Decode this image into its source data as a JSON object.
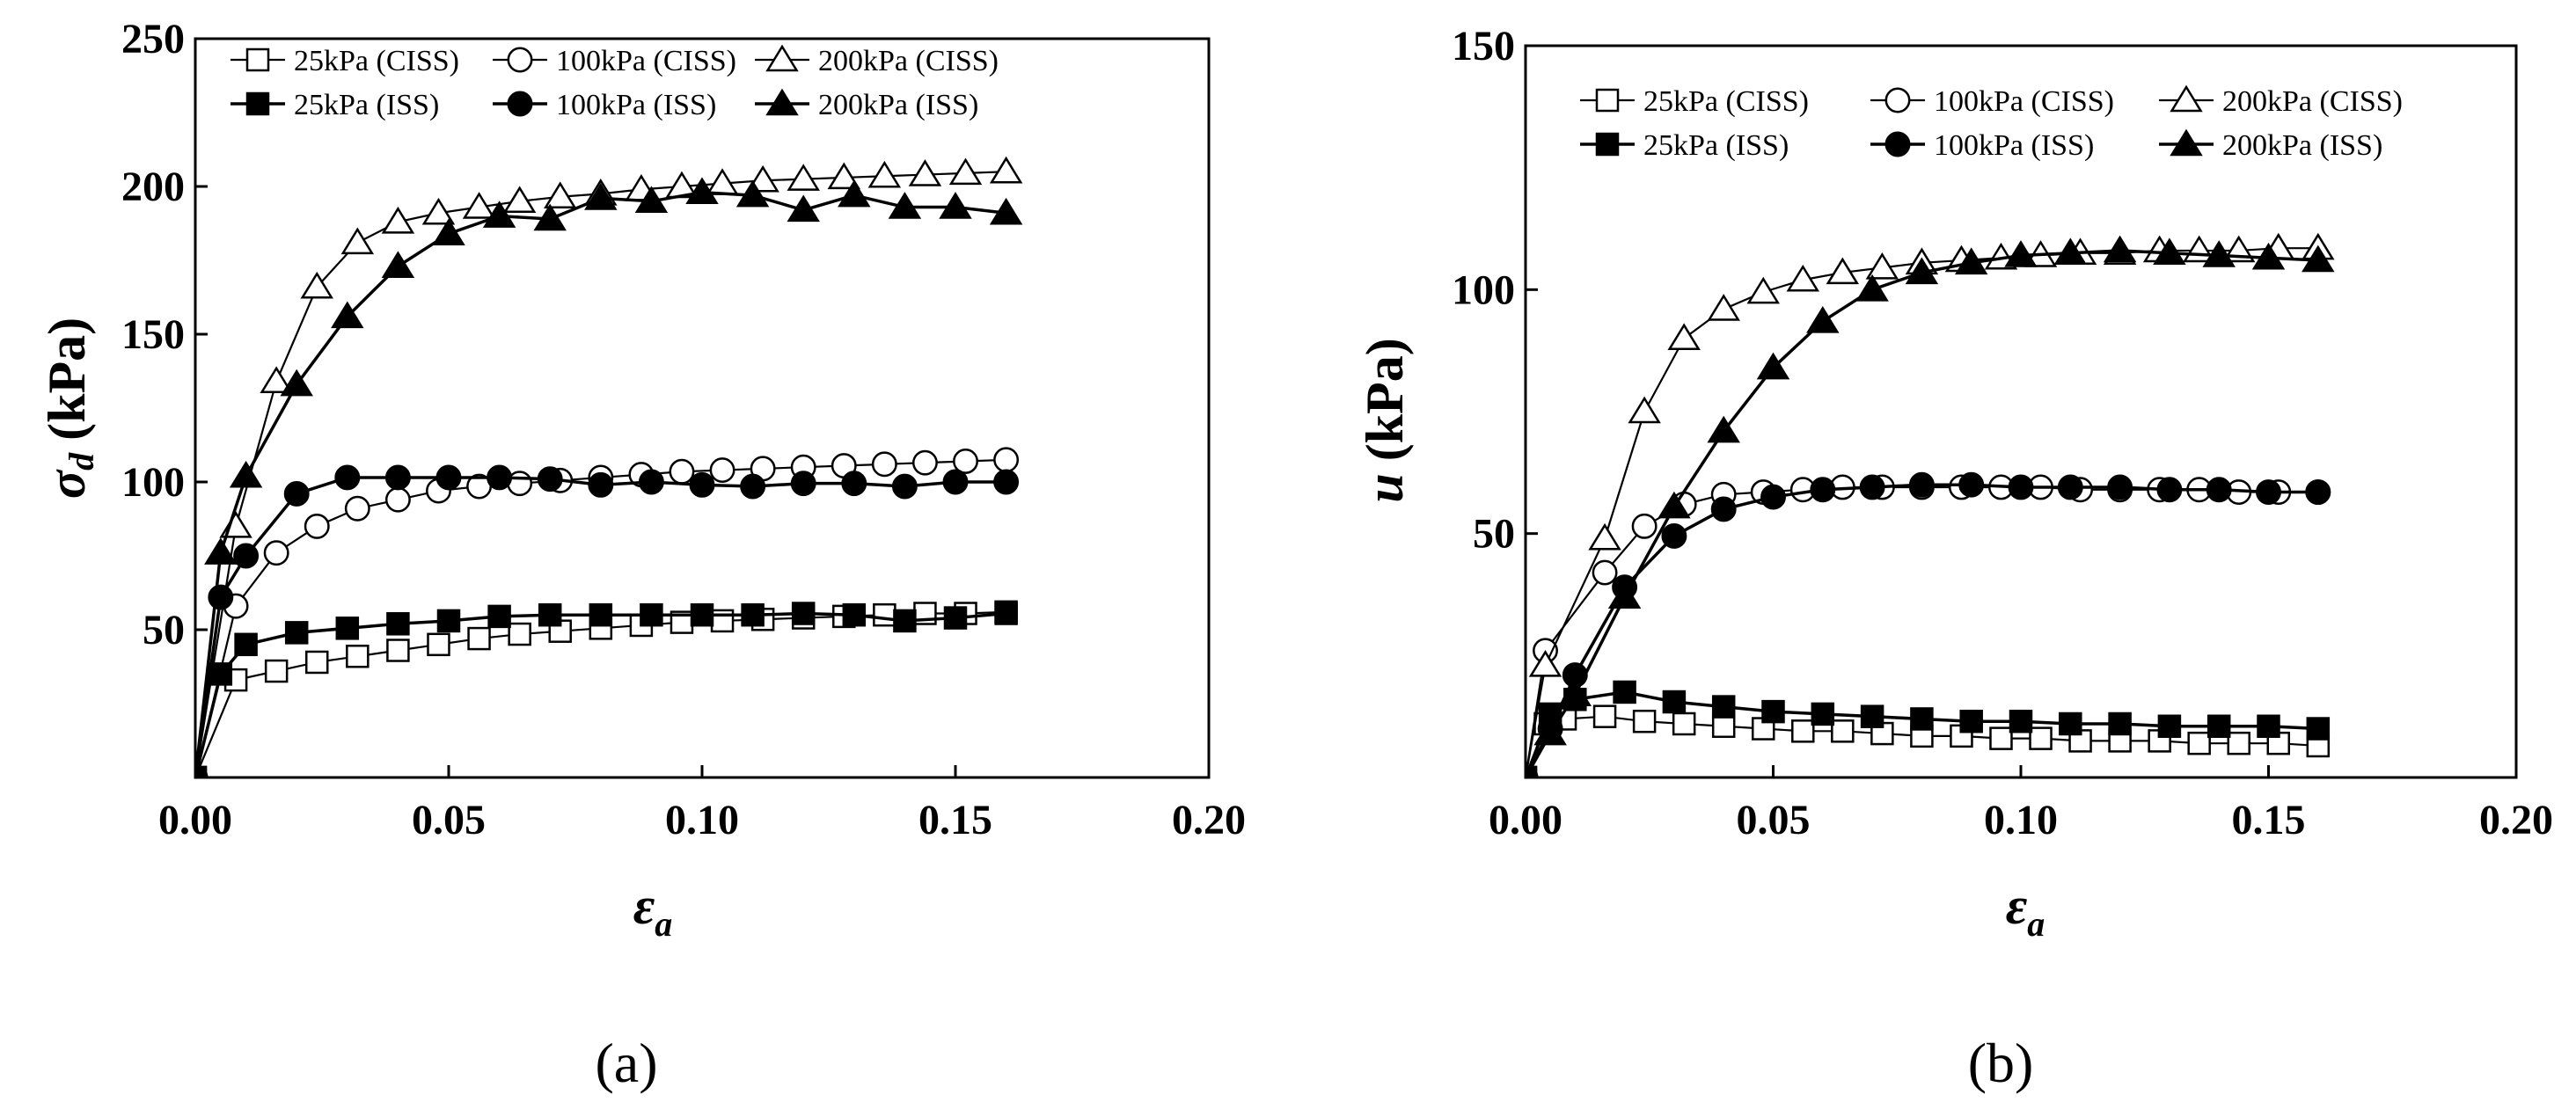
{
  "chart_data": [
    {
      "type": "line",
      "panel_label": "(a)",
      "ylabel_main": "σ",
      "ylabel_sub": "d",
      "ylabel_unit": "(kPa)",
      "xlabel_main": "ε",
      "xlabel_sub": "a",
      "xlim": [
        0,
        0.2
      ],
      "ylim": [
        0,
        250
      ],
      "xticks": [
        "0.00",
        "0.05",
        "0.10",
        "0.15",
        "0.20"
      ],
      "xtick_values": [
        0,
        0.05,
        0.1,
        0.15,
        0.2
      ],
      "yticks": [
        "50",
        "100",
        "150",
        "200",
        "250"
      ],
      "ytick_values": [
        50,
        100,
        150,
        200,
        250
      ],
      "legend_position": "top",
      "series": [
        {
          "name": "25kPa (CISS)",
          "marker": "square",
          "filled": false,
          "x": [
            0,
            0.008,
            0.016,
            0.024,
            0.032,
            0.04,
            0.048,
            0.056,
            0.064,
            0.072,
            0.08,
            0.088,
            0.096,
            0.104,
            0.112,
            0.12,
            0.128,
            0.136,
            0.144,
            0.152,
            0.16
          ],
          "y": [
            0,
            33,
            36,
            39,
            41,
            43,
            45,
            47,
            48.5,
            49.5,
            50.5,
            51.5,
            52.5,
            53,
            53.5,
            54,
            54.5,
            55,
            55.5,
            55.5,
            56
          ]
        },
        {
          "name": "100kPa (CISS)",
          "marker": "circle",
          "filled": false,
          "x": [
            0,
            0.008,
            0.016,
            0.024,
            0.032,
            0.04,
            0.048,
            0.056,
            0.064,
            0.072,
            0.08,
            0.088,
            0.096,
            0.104,
            0.112,
            0.12,
            0.128,
            0.136,
            0.144,
            0.152,
            0.16
          ],
          "y": [
            0,
            58,
            76,
            85,
            91,
            94,
            97,
            98.5,
            99.5,
            100.5,
            101.5,
            102.5,
            103.5,
            104,
            104.5,
            105,
            105.5,
            106,
            106.5,
            107,
            107.5
          ]
        },
        {
          "name": "200kPa (CISS)",
          "marker": "triangle",
          "filled": false,
          "x": [
            0,
            0.008,
            0.016,
            0.024,
            0.032,
            0.04,
            0.048,
            0.056,
            0.064,
            0.072,
            0.08,
            0.088,
            0.096,
            0.104,
            0.112,
            0.12,
            0.128,
            0.136,
            0.144,
            0.152,
            0.16
          ],
          "y": [
            0,
            85,
            134,
            166,
            181,
            188,
            191,
            193,
            195,
            196.5,
            197.5,
            199,
            200,
            201,
            202,
            202.5,
            203,
            203.5,
            204,
            204.5,
            205
          ]
        },
        {
          "name": "25kPa (ISS)",
          "marker": "square",
          "filled": true,
          "x": [
            0,
            0.005,
            0.01,
            0.02,
            0.03,
            0.04,
            0.05,
            0.06,
            0.07,
            0.08,
            0.09,
            0.1,
            0.11,
            0.12,
            0.13,
            0.14,
            0.15,
            0.16
          ],
          "y": [
            0,
            35,
            45,
            49,
            50.5,
            52,
            53,
            54.5,
            55,
            55,
            55,
            55,
            55,
            55.5,
            55,
            53,
            54,
            55.5
          ]
        },
        {
          "name": "100kPa (ISS)",
          "marker": "circle",
          "filled": true,
          "x": [
            0,
            0.005,
            0.01,
            0.02,
            0.03,
            0.04,
            0.05,
            0.06,
            0.07,
            0.08,
            0.09,
            0.1,
            0.11,
            0.12,
            0.13,
            0.14,
            0.15,
            0.16
          ],
          "y": [
            0,
            61,
            75,
            96,
            101.5,
            101.5,
            101.5,
            101.5,
            101,
            99,
            100,
            99,
            98.5,
            99.5,
            99.5,
            98.5,
            100,
            100
          ]
        },
        {
          "name": "200kPa (ISS)",
          "marker": "triangle",
          "filled": true,
          "x": [
            0,
            0.005,
            0.01,
            0.02,
            0.03,
            0.04,
            0.05,
            0.06,
            0.07,
            0.08,
            0.09,
            0.1,
            0.11,
            0.12,
            0.13,
            0.14,
            0.15,
            0.16
          ],
          "y": [
            0,
            76,
            102,
            133,
            156,
            173,
            184,
            190,
            189,
            196,
            195,
            198,
            197,
            192,
            197,
            193,
            193,
            191
          ]
        }
      ]
    },
    {
      "type": "line",
      "panel_label": "(b)",
      "ylabel_main": "u",
      "ylabel_unit": "(kPa)",
      "xlabel_main": "ε",
      "xlabel_sub": "a",
      "xlim": [
        0,
        0.2
      ],
      "ylim": [
        0,
        150
      ],
      "xticks": [
        "0.00",
        "0.05",
        "0.10",
        "0.15",
        "0.20"
      ],
      "xtick_values": [
        0,
        0.05,
        0.1,
        0.15,
        0.2
      ],
      "yticks": [
        "50",
        "100",
        "150"
      ],
      "ytick_values": [
        50,
        100,
        150
      ],
      "legend_position": "top",
      "series": [
        {
          "name": "25kPa (CISS)",
          "marker": "square",
          "filled": false,
          "x": [
            0,
            0.004,
            0.008,
            0.016,
            0.024,
            0.032,
            0.04,
            0.048,
            0.056,
            0.064,
            0.072,
            0.08,
            0.088,
            0.096,
            0.104,
            0.112,
            0.12,
            0.128,
            0.136,
            0.144,
            0.152,
            0.16
          ],
          "y": [
            0,
            11,
            12,
            12.5,
            11.5,
            11,
            10.5,
            10,
            9.5,
            9.5,
            9,
            8.5,
            8.5,
            8,
            8,
            7.5,
            7.5,
            7.5,
            7,
            7,
            7,
            6.5
          ]
        },
        {
          "name": "100kPa (CISS)",
          "marker": "circle",
          "filled": false,
          "x": [
            0,
            0.004,
            0.016,
            0.024,
            0.032,
            0.04,
            0.048,
            0.056,
            0.064,
            0.072,
            0.08,
            0.088,
            0.096,
            0.104,
            0.112,
            0.12,
            0.128,
            0.136,
            0.144,
            0.152,
            0.16
          ],
          "y": [
            0,
            26,
            42,
            51.5,
            56,
            58,
            58.5,
            59,
            59.5,
            59.5,
            59.5,
            59.5,
            59.5,
            59.5,
            59,
            59,
            59,
            59,
            58.5,
            58.5,
            58.5
          ]
        },
        {
          "name": "200kPa (CISS)",
          "marker": "triangle",
          "filled": false,
          "x": [
            0,
            0.004,
            0.016,
            0.024,
            0.032,
            0.04,
            0.048,
            0.056,
            0.064,
            0.072,
            0.08,
            0.088,
            0.096,
            0.104,
            0.112,
            0.12,
            0.128,
            0.136,
            0.144,
            0.152,
            0.16
          ],
          "y": [
            0,
            23,
            49,
            75,
            90,
            96,
            99.5,
            102,
            103.5,
            104.5,
            105.5,
            106,
            106.5,
            107,
            107.5,
            107.5,
            108,
            108,
            108,
            108.5,
            108.5
          ]
        },
        {
          "name": "25kPa (ISS)",
          "marker": "square",
          "filled": true,
          "x": [
            0,
            0.005,
            0.01,
            0.02,
            0.03,
            0.04,
            0.05,
            0.06,
            0.07,
            0.08,
            0.09,
            0.1,
            0.11,
            0.12,
            0.13,
            0.14,
            0.15,
            0.16
          ],
          "y": [
            0,
            13,
            16,
            17.5,
            15.5,
            14.5,
            13.5,
            13,
            12.5,
            12,
            11.5,
            11.5,
            11,
            11,
            10.5,
            10.5,
            10.5,
            10
          ]
        },
        {
          "name": "100kPa (ISS)",
          "marker": "circle",
          "filled": true,
          "x": [
            0,
            0.005,
            0.01,
            0.02,
            0.03,
            0.04,
            0.05,
            0.06,
            0.07,
            0.08,
            0.09,
            0.1,
            0.11,
            0.12,
            0.13,
            0.14,
            0.15,
            0.16
          ],
          "y": [
            0,
            10,
            21,
            39,
            49.5,
            55,
            57.5,
            59,
            59.5,
            60,
            60,
            59.5,
            59.5,
            59.5,
            59,
            59,
            58.5,
            58.5
          ]
        },
        {
          "name": "200kPa (ISS)",
          "marker": "triangle",
          "filled": true,
          "x": [
            0,
            0.005,
            0.01,
            0.02,
            0.03,
            0.04,
            0.05,
            0.06,
            0.07,
            0.08,
            0.09,
            0.1,
            0.11,
            0.12,
            0.13,
            0.14,
            0.15,
            0.16
          ],
          "y": [
            0,
            9,
            17,
            37,
            55.5,
            71,
            84,
            93.5,
            100,
            103.5,
            105.5,
            107,
            107.5,
            108,
            107.5,
            107,
            106.5,
            106
          ]
        }
      ]
    }
  ]
}
